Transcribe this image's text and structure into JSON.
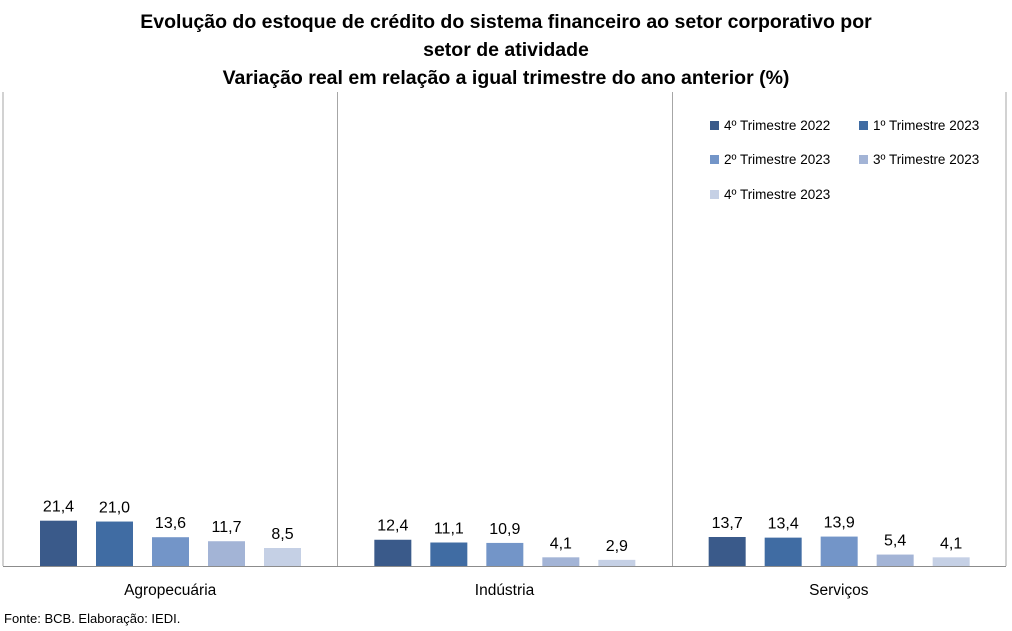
{
  "title_lines": [
    "Evolução do estoque de crédito do sistema financeiro ao setor corporativo por",
    "setor de atividade",
    "Variação real em relação a igual trimestre do ano anterior (%)"
  ],
  "source": "Fonte: BCB. Elaboração: IEDI.",
  "chart_data": {
    "type": "bar",
    "categories": [
      "Agropecuária",
      "Indústria",
      "Serviços"
    ],
    "series": [
      {
        "name": "4º Trimestre 2022",
        "values": [
          21.4,
          12.4,
          13.7
        ],
        "labels": [
          "21,4",
          "12,4",
          "13,7"
        ],
        "color": "#3a5a8a"
      },
      {
        "name": "1º Trimestre 2023",
        "values": [
          21.0,
          11.1,
          13.4
        ],
        "labels": [
          "21,0",
          "11,1",
          "13,4"
        ],
        "color": "#406ca3"
      },
      {
        "name": "2º Trimestre 2023",
        "values": [
          13.6,
          10.9,
          13.9
        ],
        "labels": [
          "13,6",
          "10,9",
          "13,9"
        ],
        "color": "#7395c8"
      },
      {
        "name": "3º Trimestre 2023",
        "values": [
          11.7,
          4.1,
          5.4
        ],
        "labels": [
          "11,7",
          "4,1",
          "5,4"
        ],
        "color": "#a3b4d6"
      },
      {
        "name": "4º Trimestre 2023",
        "values": [
          8.5,
          2.9,
          4.1
        ],
        "labels": [
          "8,5",
          "2,9",
          "4,1"
        ],
        "color": "#c5d0e5"
      }
    ],
    "ylim": [
      0,
      22
    ],
    "grid": false,
    "legend_position": "top-right"
  }
}
